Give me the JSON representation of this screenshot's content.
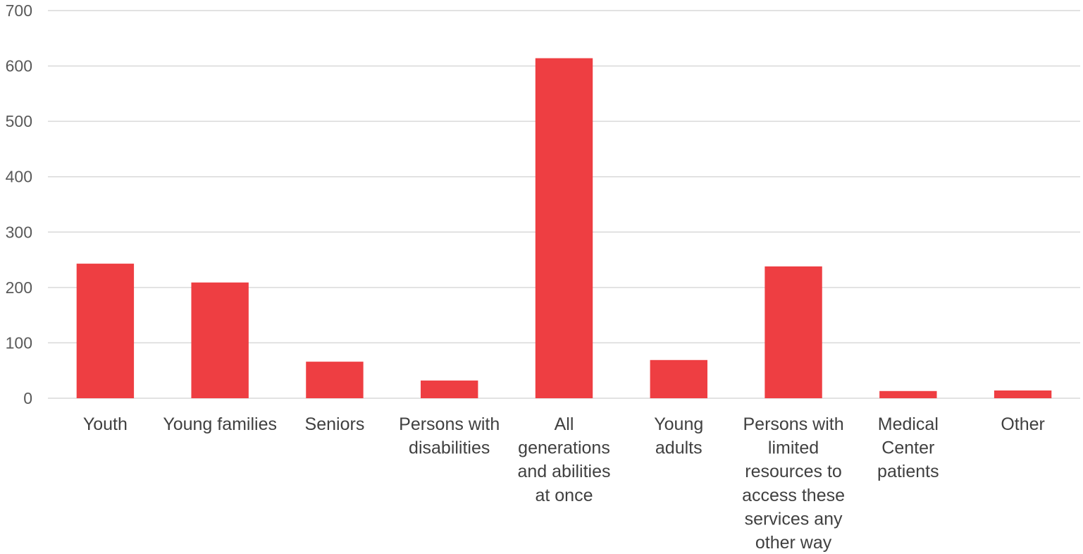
{
  "chart_data": {
    "type": "bar",
    "title": "",
    "xlabel": "",
    "ylabel": "",
    "ylim": [
      0,
      700
    ],
    "yticks": [
      0,
      100,
      200,
      300,
      400,
      500,
      600,
      700
    ],
    "grid": true,
    "legend": "none",
    "bar_color": "#EE3E42",
    "categories": [
      [
        "Youth"
      ],
      [
        "Young families"
      ],
      [
        "Seniors"
      ],
      [
        "Persons with",
        "disabilities"
      ],
      [
        "All",
        "generations",
        "and abilities",
        "at once"
      ],
      [
        "Young",
        "adults"
      ],
      [
        "Persons with",
        "limited",
        "resources to",
        "access these",
        "services any",
        "other way"
      ],
      [
        "Medical",
        "Center",
        "patients"
      ],
      [
        "Other"
      ]
    ],
    "values": [
      243,
      209,
      66,
      32,
      614,
      69,
      238,
      13,
      14
    ]
  }
}
